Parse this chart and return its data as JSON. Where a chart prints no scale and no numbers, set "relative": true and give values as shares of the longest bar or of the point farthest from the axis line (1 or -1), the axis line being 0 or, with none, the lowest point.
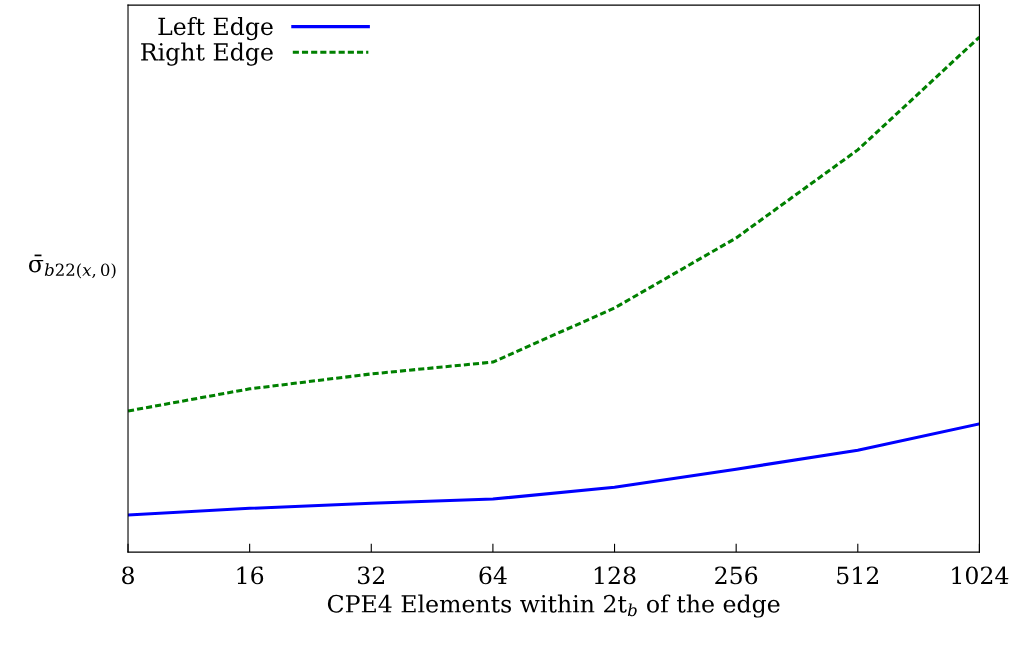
{
  "chart_data": {
    "type": "line",
    "xlabel": "CPE4 Elements within 2t$_{b}$ of the edge",
    "ylabel": "σ̄$_{b22(x,0)}$",
    "x": [
      8,
      16,
      32,
      64,
      128,
      256,
      512,
      1024
    ],
    "xlim": [
      8,
      1024
    ],
    "xticks": [
      8,
      16,
      32,
      64,
      128,
      256,
      512,
      1024
    ],
    "log": "x",
    "relative": true,
    "legend": "top left",
    "grid": false,
    "marker": "none",
    "series": [
      {
        "name": "Left Edge",
        "color": "#0000ff",
        "line_style": "solid",
        "values": [
          0.072,
          0.085,
          0.095,
          0.103,
          0.126,
          0.161,
          0.198,
          0.249
        ]
      },
      {
        "name": "Right Edge",
        "color": "#008000",
        "line_style": "dashed",
        "values": [
          0.274,
          0.317,
          0.346,
          0.369,
          0.474,
          0.61,
          0.781,
          1.0
        ]
      }
    ]
  }
}
